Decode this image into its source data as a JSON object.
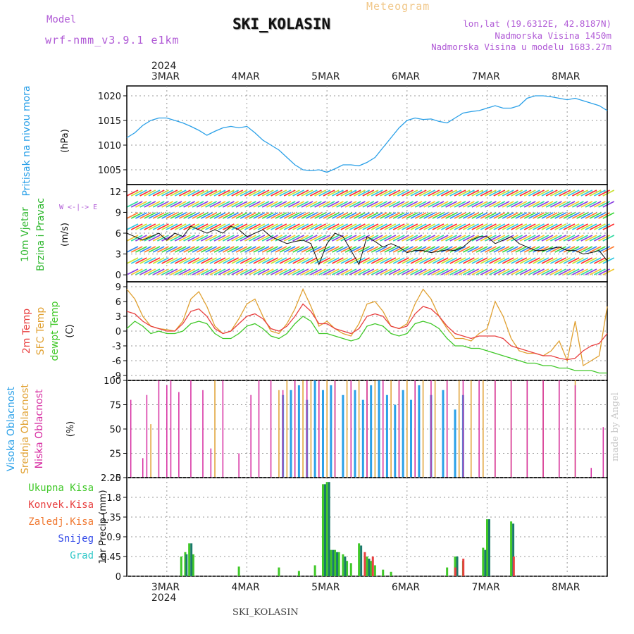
{
  "header": {
    "model_label": "Model",
    "model_value": "wrf-nmm_v3.9.1 e1km",
    "product": "Meteogram",
    "station": "SKI_KOLASIN",
    "lonlat": "lon,lat (19.6312E, 42.8187N)",
    "altitude": "Nadmorska Visina 1450m",
    "altitude_model": "Nadmorska Visina u modelu 1683.27m"
  },
  "footer": {
    "station": "SKI_KOLASIN",
    "watermark": "made by Angel"
  },
  "time_axis": {
    "year": "2024",
    "days": [
      "3MAR",
      "4MAR",
      "5MAR",
      "6MAR",
      "7MAR",
      "8MAR"
    ]
  },
  "chart_data": [
    {
      "type": "line",
      "id": "pressure",
      "ylabel_main": "Pritisak na nivou mora",
      "unit": "(hPa)",
      "color": "#2aa0e8",
      "ylim": [
        1002,
        1022
      ],
      "yticks": [
        1005,
        1010,
        1015,
        1020
      ],
      "xlim_days": [
        -0.5,
        5.5
      ],
      "x_days": [
        -0.5,
        -0.4,
        -0.3,
        -0.2,
        -0.1,
        0.0,
        0.1,
        0.2,
        0.3,
        0.4,
        0.5,
        0.6,
        0.7,
        0.8,
        0.9,
        1.0,
        1.1,
        1.2,
        1.3,
        1.4,
        1.5,
        1.6,
        1.7,
        1.8,
        1.9,
        2.0,
        2.1,
        2.2,
        2.3,
        2.4,
        2.5,
        2.6,
        2.7,
        2.8,
        2.9,
        3.0,
        3.1,
        3.2,
        3.3,
        3.4,
        3.5,
        3.6,
        3.7,
        3.8,
        3.9,
        4.0,
        4.1,
        4.2,
        4.3,
        4.4,
        4.5,
        4.6,
        4.7,
        4.8,
        4.9,
        5.0,
        5.1,
        5.2,
        5.3,
        5.4,
        5.5
      ],
      "values": [
        1011.5,
        1012.5,
        1014,
        1015,
        1015.5,
        1015.5,
        1015,
        1014.5,
        1013.8,
        1013,
        1012,
        1012.8,
        1013.5,
        1013.8,
        1013.5,
        1013.8,
        1012.5,
        1011,
        1010,
        1009,
        1007.5,
        1006,
        1005,
        1004.8,
        1005,
        1004.5,
        1005.2,
        1006,
        1006,
        1005.8,
        1006.5,
        1007.5,
        1009.5,
        1011.5,
        1013.5,
        1015,
        1015.5,
        1015.2,
        1015.3,
        1014.8,
        1014.5,
        1015.5,
        1016.5,
        1016.8,
        1017,
        1017.5,
        1018,
        1017.5,
        1017.5,
        1018,
        1019.5,
        1020,
        1020,
        1019.8,
        1019.5,
        1019.2,
        1019.5,
        1019,
        1018.5,
        1018,
        1017
      ]
    },
    {
      "type": "line",
      "id": "wind",
      "ylabel_main": "10m Vjetar",
      "ylabel_sub": "Brzina i Pravac",
      "unit": "(m/s)",
      "compass": "W <-|-> E",
      "ylim": [
        -1,
        13
      ],
      "yticks": [
        0,
        3,
        6,
        9,
        12
      ],
      "x_days": [
        -0.5,
        -0.4,
        -0.3,
        -0.2,
        -0.1,
        0.0,
        0.1,
        0.2,
        0.3,
        0.4,
        0.5,
        0.6,
        0.7,
        0.8,
        0.9,
        1.0,
        1.1,
        1.2,
        1.3,
        1.4,
        1.5,
        1.6,
        1.7,
        1.8,
        1.9,
        2.0,
        2.1,
        2.2,
        2.3,
        2.4,
        2.5,
        2.6,
        2.7,
        2.8,
        2.9,
        3.0,
        3.1,
        3.2,
        3.3,
        3.4,
        3.5,
        3.6,
        3.7,
        3.8,
        3.9,
        4.0,
        4.1,
        4.2,
        4.3,
        4.4,
        4.5,
        4.6,
        4.7,
        4.8,
        4.9,
        5.0,
        5.1,
        5.2,
        5.3,
        5.4,
        5.5
      ],
      "values": [
        6,
        5.5,
        5,
        5.5,
        6,
        5,
        6,
        5.5,
        7,
        6.5,
        6,
        6.5,
        6,
        7,
        6.5,
        5.5,
        6,
        6.5,
        5.5,
        5,
        4.5,
        4.8,
        5,
        4.5,
        1.5,
        4.5,
        6,
        5.5,
        3.5,
        1.5,
        5.5,
        4.8,
        4,
        4.5,
        4,
        3.2,
        3.5,
        3.5,
        3.2,
        3.4,
        3.6,
        3.5,
        4,
        5,
        5.5,
        5.5,
        4.5,
        5,
        5.5,
        4.5,
        4,
        3.5,
        3.5,
        3.8,
        4,
        3.5,
        3.5,
        3,
        3.2,
        3.5,
        2
      ]
    },
    {
      "type": "line",
      "id": "temperature",
      "ylabel": [
        "2m Temp",
        "SFC Temp",
        "dewpt Temp"
      ],
      "unit": "(C)",
      "ylim": [
        -10,
        10
      ],
      "yticks": [
        -9,
        -6,
        -3,
        0,
        3,
        6,
        9
      ],
      "x_days": [
        -0.5,
        -0.4,
        -0.3,
        -0.2,
        -0.1,
        0.0,
        0.1,
        0.2,
        0.3,
        0.4,
        0.5,
        0.6,
        0.7,
        0.8,
        0.9,
        1.0,
        1.1,
        1.2,
        1.3,
        1.4,
        1.5,
        1.6,
        1.7,
        1.8,
        1.9,
        2.0,
        2.1,
        2.2,
        2.3,
        2.4,
        2.5,
        2.6,
        2.7,
        2.8,
        2.9,
        3.0,
        3.1,
        3.2,
        3.3,
        3.4,
        3.5,
        3.6,
        3.7,
        3.8,
        3.9,
        4.0,
        4.1,
        4.2,
        4.3,
        4.4,
        4.5,
        4.6,
        4.7,
        4.8,
        4.9,
        5.0,
        5.1,
        5.2,
        5.3,
        5.4,
        5.5
      ],
      "series": [
        {
          "name": "SFC Temp",
          "color": "#e0a030",
          "values": [
            8.5,
            6.5,
            3,
            1,
            0.5,
            0.3,
            0,
            2,
            6.5,
            8,
            5,
            1,
            -0.5,
            0,
            2.5,
            5.5,
            6.5,
            3,
            0,
            -0.5,
            1.5,
            4.5,
            8.5,
            5,
            1,
            2,
            0.5,
            -0.5,
            -1,
            1.5,
            5.5,
            6,
            4,
            1,
            0.5,
            1.5,
            5.5,
            8.5,
            6.5,
            3,
            0.5,
            -1.5,
            -1.5,
            -2,
            -0.5,
            0.5,
            6,
            3,
            -1.5,
            -4,
            -4.5,
            -4.5,
            -5,
            -4,
            -2,
            -6,
            2,
            -7,
            -6,
            -5,
            5
          ]
        },
        {
          "name": "2m Temp",
          "color": "#e84040",
          "values": [
            4,
            3.5,
            2,
            1,
            0.5,
            0,
            0,
            1.5,
            4,
            4.5,
            3,
            0.5,
            -0.5,
            0,
            1.5,
            3,
            3.5,
            2.5,
            0.5,
            0,
            1,
            3,
            5.5,
            4,
            1.5,
            1.5,
            0.5,
            0,
            -0.5,
            0.5,
            3,
            3.5,
            3,
            1,
            0.5,
            1,
            3.5,
            5,
            4.5,
            3,
            1,
            -0.5,
            -1,
            -1.5,
            -1,
            -1,
            -1,
            -1.5,
            -3,
            -3.5,
            -4,
            -4.5,
            -5,
            -5,
            -5.5,
            -5.8,
            -5.5,
            -4,
            -3,
            -2.5,
            -0.5
          ]
        },
        {
          "name": "dewpt Temp",
          "color": "#40c828",
          "values": [
            0.5,
            2,
            1,
            -0.5,
            0,
            -0.5,
            -0.5,
            0,
            1.5,
            2,
            1.5,
            -0.5,
            -1.5,
            -1.5,
            -0.5,
            1,
            1.5,
            0.5,
            -1,
            -1.5,
            -0.5,
            1.5,
            3,
            2,
            -0.5,
            -0.5,
            -1,
            -1.5,
            -2,
            -1.5,
            1,
            1.5,
            1,
            -0.5,
            -1,
            -0.5,
            1.5,
            2,
            1.5,
            0.5,
            -1.5,
            -3,
            -3,
            -3.5,
            -3.5,
            -4,
            -4.5,
            -5,
            -5.5,
            -6,
            -6.5,
            -6.5,
            -7,
            -7,
            -7.5,
            -7.5,
            -8,
            -8,
            -8,
            -8.5,
            -8.5
          ]
        }
      ]
    },
    {
      "type": "bar",
      "id": "cloud",
      "ylabel": [
        "Visoka Oblacnost",
        "Srednja Oblacnost",
        "Niska Oblacnost"
      ],
      "unit": "(%)",
      "ylim": [
        0,
        100
      ],
      "yticks": [
        0,
        25,
        50,
        75,
        100
      ],
      "series": [
        {
          "name": "Visoka Oblacnost",
          "color": "#2aa0e8",
          "x_days": [
            1.45,
            1.55,
            1.65,
            1.75,
            1.85,
            1.95,
            2.05,
            2.2,
            2.35,
            2.45,
            2.55,
            2.65,
            2.75,
            2.85,
            2.95,
            3.05,
            3.15,
            3.3,
            3.45,
            3.6,
            3.7
          ],
          "values": [
            85,
            90,
            95,
            80,
            100,
            90,
            95,
            85,
            90,
            80,
            95,
            100,
            85,
            75,
            90,
            80,
            95,
            85,
            90,
            70,
            85
          ]
        },
        {
          "name": "Srednja Oblacnost",
          "color": "#e0a030",
          "x_days": [
            -0.2,
            0.6,
            1.4,
            1.5,
            1.6,
            1.7,
            1.8,
            1.9,
            2.0,
            2.1,
            2.25,
            2.4,
            2.5,
            2.6,
            2.7,
            2.8,
            2.9,
            3.0,
            3.1,
            3.2,
            3.35,
            3.5,
            3.65,
            3.8,
            3.95,
            4.1,
            4.3,
            4.5,
            4.7,
            4.9,
            5.1
          ],
          "values": [
            55,
            100,
            90,
            100,
            100,
            100,
            100,
            100,
            100,
            100,
            100,
            100,
            100,
            100,
            100,
            100,
            100,
            100,
            100,
            100,
            100,
            100,
            100,
            100,
            100,
            100,
            100,
            100,
            100,
            100,
            100
          ]
        },
        {
          "name": "Niska Oblacnost",
          "color": "#d62aa0",
          "x_days": [
            -0.45,
            -0.3,
            -0.25,
            -0.1,
            0.0,
            0.05,
            0.15,
            0.3,
            0.45,
            0.55,
            0.7,
            0.9,
            1.05,
            1.15,
            1.3,
            1.45,
            1.6,
            1.75,
            1.9,
            2.1,
            2.3,
            2.5,
            2.7,
            2.9,
            3.1,
            3.3,
            3.5,
            3.7,
            3.9,
            4.1,
            4.3,
            4.5,
            4.7,
            4.9,
            5.1,
            5.3,
            5.45
          ],
          "values": [
            80,
            20,
            85,
            100,
            95,
            100,
            88,
            100,
            90,
            30,
            100,
            25,
            85,
            100,
            100,
            90,
            100,
            100,
            100,
            100,
            100,
            100,
            100,
            100,
            100,
            100,
            100,
            100,
            100,
            100,
            100,
            100,
            100,
            100,
            95,
            10,
            52
          ]
        }
      ]
    },
    {
      "type": "bar",
      "id": "precip",
      "ylabel": [
        "Ukupna Kisa",
        "Konvek.Kisa",
        "Zaledj.Kisa",
        "Snijeg",
        "Grad"
      ],
      "unit": "1hr Precip (mm)",
      "ylim": [
        0,
        2.25
      ],
      "yticks": [
        0,
        0.45,
        0.9,
        1.35,
        1.8,
        2.25
      ],
      "series": [
        {
          "name": "Ukupna Kisa",
          "color": "#40c828",
          "x_days": [
            0.18,
            0.23,
            0.28,
            0.33,
            0.9,
            1.4,
            1.65,
            1.85,
            1.95,
            2.0,
            2.05,
            2.1,
            2.15,
            2.2,
            2.25,
            2.3,
            2.4,
            2.5,
            2.55,
            2.6,
            2.7,
            2.8,
            3.5,
            3.6,
            3.7,
            3.95,
            4.0,
            4.3
          ],
          "values": [
            0.45,
            0.55,
            0.75,
            0.5,
            0.22,
            0.2,
            0.12,
            0.25,
            2.1,
            2.15,
            0.6,
            0.6,
            0.55,
            0.5,
            0.35,
            0.3,
            0.75,
            0.45,
            0.35,
            0.25,
            0.15,
            0.1,
            0.2,
            0.45,
            0.35,
            0.65,
            1.3,
            1.25
          ]
        },
        {
          "name": "Snijeg",
          "color": "#1a7a6a",
          "x_days": [
            0.22,
            0.28,
            1.95,
            2.0,
            2.05,
            2.1,
            2.2,
            2.4,
            2.5,
            3.6,
            3.95,
            4.0,
            4.3
          ],
          "values": [
            0.5,
            0.75,
            2.1,
            2.15,
            0.6,
            0.55,
            0.45,
            0.7,
            0.4,
            0.45,
            0.6,
            1.3,
            1.2
          ]
        },
        {
          "name": "Konvek.Kisa",
          "color": "#e84040",
          "x_days": [
            2.42,
            2.52,
            3.55,
            3.65,
            4.28
          ],
          "values": [
            0.55,
            0.45,
            0.2,
            0.4,
            0.45
          ]
        }
      ]
    }
  ]
}
